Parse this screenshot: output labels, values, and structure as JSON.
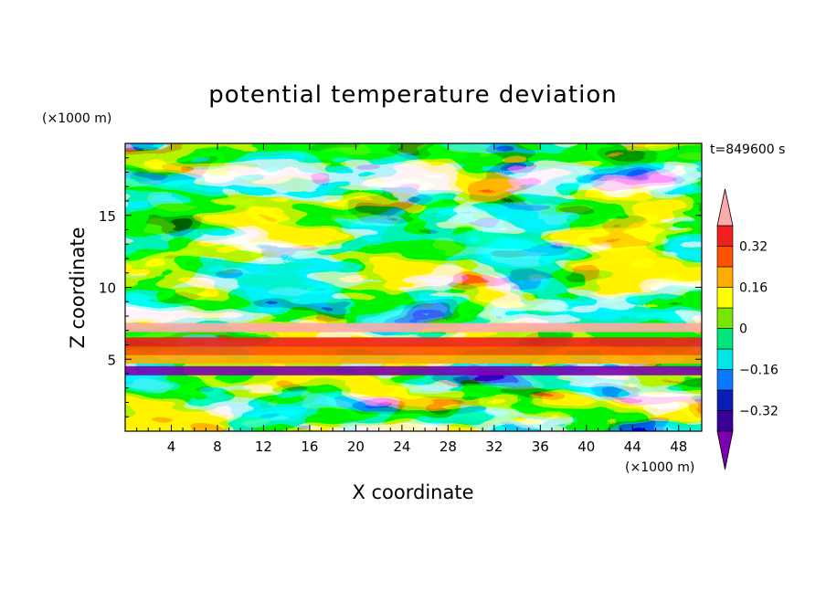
{
  "chart_data": {
    "type": "heatmap",
    "title": "potential temperature deviation",
    "time_label": "t=849600 s",
    "xlabel": "X coordinate",
    "ylabel": "Z coordinate",
    "x_unit": "(×1000 m)",
    "y_unit": "(×1000 m)",
    "xlim": [
      0,
      50
    ],
    "ylim": [
      0,
      20
    ],
    "x_ticks": [
      4,
      8,
      12,
      16,
      20,
      24,
      28,
      32,
      36,
      40,
      44,
      48
    ],
    "x_tick_labels": [
      "4",
      "8",
      "12",
      "16",
      "20",
      "24",
      "28",
      "32",
      "36",
      "40",
      "44",
      "48"
    ],
    "y_ticks": [
      5,
      10,
      15
    ],
    "y_tick_labels": [
      "5",
      "10",
      "15"
    ],
    "colorbar": {
      "levels": [
        -0.4,
        -0.32,
        -0.24,
        -0.16,
        -0.08,
        0,
        0.08,
        0.16,
        0.24,
        0.32,
        0.4
      ],
      "labels": [
        {
          "value": 0.32,
          "text": "0.32"
        },
        {
          "value": 0.16,
          "text": "0.16"
        },
        {
          "value": 0,
          "text": "0"
        },
        {
          "value": -0.16,
          "text": "−0.16"
        },
        {
          "value": -0.32,
          "text": "−0.32"
        }
      ],
      "colors": [
        "#7a00b0",
        "#3a0096",
        "#0a1eb4",
        "#0a78ff",
        "#00e6e6",
        "#00e678",
        "#78e600",
        "#ffff00",
        "#ffaa00",
        "#ff5000",
        "#f01e1e",
        "#ffaaaa"
      ],
      "extend": "both"
    },
    "bands": [
      {
        "z": 4.2,
        "value": -0.45,
        "label": "lower purple band"
      },
      {
        "z": 5.0,
        "value": 0.2,
        "label": "yellow band"
      },
      {
        "z": 5.6,
        "value": 0.3,
        "label": "orange band"
      },
      {
        "z": 6.2,
        "value": 0.36,
        "label": "red band"
      },
      {
        "z": 7.2,
        "value": 0.45,
        "label": "pink band"
      }
    ]
  }
}
